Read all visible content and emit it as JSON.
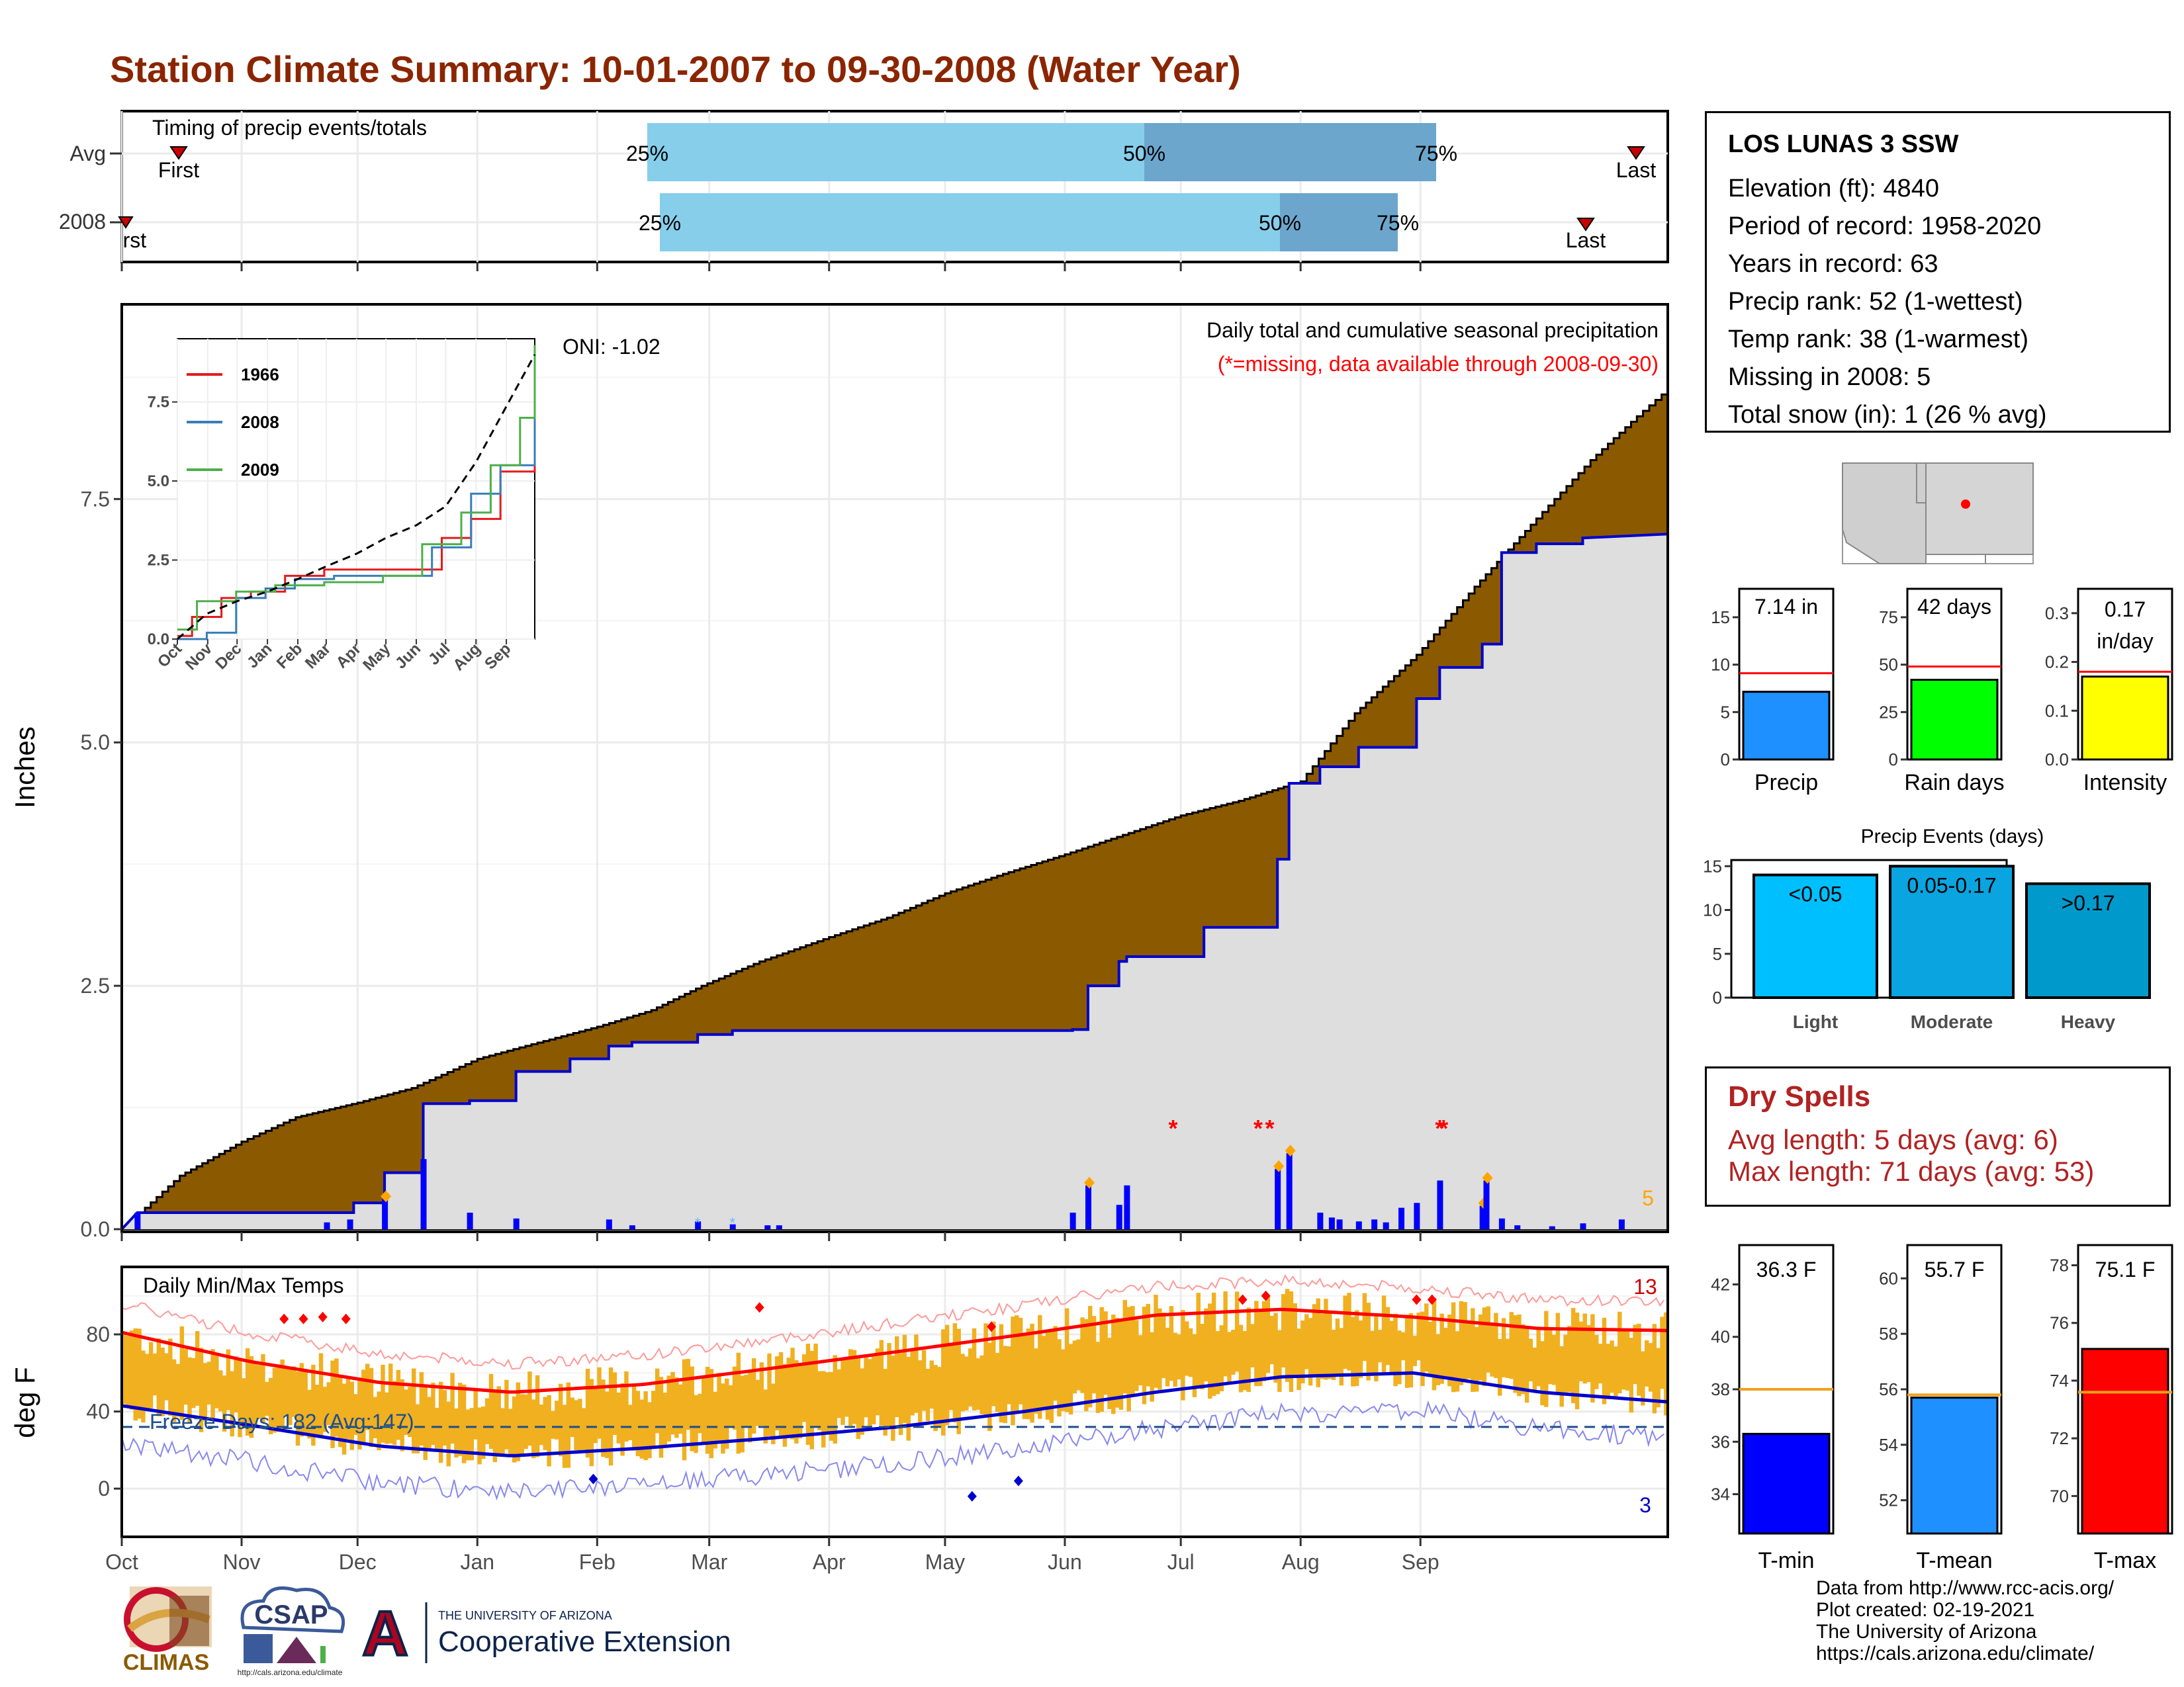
{
  "title": "Station Climate Summary: 10-01-2007 to 09-30-2008 (Water Year)",
  "timing_panel": {
    "label": "Timing of precip events/totals",
    "rows": [
      {
        "name": "Avg",
        "first_label": "First",
        "last_label": "Last",
        "p25_label": "25%",
        "p50_label": "50%",
        "p75_label": "75%"
      },
      {
        "name": "2008",
        "first_label": "First",
        "last_label": "Last",
        "p25_label": "25%",
        "p50_label": "50%",
        "p75_label": "75%"
      }
    ],
    "colors": {
      "light": "#87CEEB",
      "dark": "#6CA6CD",
      "marker": "#CC0000"
    }
  },
  "precip_panel": {
    "ylabel": "Inches",
    "annotation_main": "Daily total and cumulative seasonal precipitation",
    "annotation_missing": "(*=missing, data available through 2008-09-30)",
    "oni": "ONI: -1.02",
    "missing_count": "5",
    "colors": {
      "avg_fill": "#8B5A00",
      "obs_fill": "#DEDEDE",
      "obs_line": "#0000CC",
      "bars": "#0000FF",
      "diamond": "#FFA500",
      "missing": "#FF0000"
    }
  },
  "inset": {
    "legend": [
      "1966",
      "2008",
      "2009"
    ],
    "colors": [
      "#E41A1C",
      "#377EB8",
      "#4DAF4A"
    ],
    "months": [
      "Oct",
      "Nov",
      "Dec",
      "Jan",
      "Feb",
      "Mar",
      "Apr",
      "May",
      "Jun",
      "Jul",
      "Aug",
      "Sep"
    ],
    "yticks": [
      "0.0",
      "2.5",
      "5.0",
      "7.5"
    ]
  },
  "temp_panel": {
    "ylabel": "deg F",
    "label": "Daily Min/Max Temps",
    "freeze_text": "Freeze Days: 182 (Avg:147)",
    "record_high_count": "13",
    "record_low_count": "3",
    "colors": {
      "bars": "#F0B020",
      "max_line": "#FF0000",
      "min_line": "#0000CC"
    }
  },
  "x_months": [
    "Oct",
    "Nov",
    "Dec",
    "Jan",
    "Feb",
    "Mar",
    "Apr",
    "May",
    "Jun",
    "Jul",
    "Aug",
    "Sep"
  ],
  "info": {
    "station": "LOS LUNAS 3 SSW",
    "lines": [
      "Elevation (ft): 4840",
      "Period of record: 1958-2020",
      "Years in record: 63",
      "Precip rank: 52 (1-wettest)",
      "Temp rank: 38 (1-warmest)",
      "Missing in 2008: 5",
      "Total snow (in): 1 (26 % avg)"
    ]
  },
  "mini_bars": [
    {
      "label": "Precip",
      "value_text": "7.14 in",
      "value": 7.14,
      "avg": 9.1,
      "ymax": 18,
      "ticks": [
        "0",
        "5",
        "10",
        "15"
      ],
      "tick_values": [
        0,
        5,
        10,
        15
      ],
      "color": "#1E90FF"
    },
    {
      "label": "Rain days",
      "value_text": "42 days",
      "value": 42,
      "avg": 49,
      "ymax": 90,
      "ticks": [
        "0",
        "25",
        "50",
        "75"
      ],
      "tick_values": [
        0,
        25,
        50,
        75
      ],
      "color": "#00FF00"
    },
    {
      "label": "Intensity",
      "value_text": "0.17 in/day",
      "value_line1": "0.17",
      "value_line2": "in/day",
      "value": 0.17,
      "avg": 0.18,
      "ymax": 0.35,
      "ticks": [
        "0.0",
        "0.1",
        "0.2",
        "0.3"
      ],
      "tick_values": [
        0,
        0.1,
        0.2,
        0.3
      ],
      "color": "#FFFF00"
    }
  ],
  "precip_events": {
    "title": "Precip Events (days)",
    "ticks": [
      "0",
      "5",
      "10",
      "15"
    ],
    "categories": [
      "Light",
      "Moderate",
      "Heavy"
    ],
    "bar_labels": [
      "<0.05",
      "0.05-0.17",
      ">0.17"
    ],
    "values": [
      14,
      15,
      13
    ],
    "colors": [
      "#00BFFF",
      "#0AA5E0",
      "#0099CC"
    ]
  },
  "dry_spells": {
    "title": "Dry Spells",
    "avg_length": "Avg length: 5 days (avg: 6)",
    "max_length": "Max length: 71 days (avg: 53)"
  },
  "temp_bars": [
    {
      "label": "T-min",
      "value_text": "36.3 F",
      "value": 36.3,
      "avg": 38.0,
      "ymin": 32.5,
      "ymax": 43.5,
      "ticks": [
        "34",
        "36",
        "38",
        "40",
        "42"
      ],
      "tick_values": [
        34,
        36,
        38,
        40,
        42
      ],
      "color": "#0000FF"
    },
    {
      "label": "T-mean",
      "value_text": "55.7 F",
      "value": 55.7,
      "avg": 55.8,
      "ymin": 50.8,
      "ymax": 61.2,
      "ticks": [
        "52",
        "54",
        "56",
        "58",
        "60"
      ],
      "tick_values": [
        52,
        54,
        56,
        58,
        60
      ],
      "color": "#1E90FF"
    },
    {
      "label": "T-max",
      "value_text": "75.1 F",
      "value": 75.1,
      "avg": 73.6,
      "ymin": 68.7,
      "ymax": 78.7,
      "ticks": [
        "70",
        "72",
        "74",
        "76",
        "78"
      ],
      "tick_values": [
        70,
        72,
        74,
        76,
        78
      ],
      "color": "#FF0000"
    }
  ],
  "footer": {
    "lines": [
      "Data from http://www.rcc-acis.org/",
      "Plot created: 02-19-2021",
      "The University of Arizona",
      "https://cals.arizona.edu/climate/"
    ]
  },
  "logos": {
    "climas": "CLIMAS",
    "csap": "CSAP",
    "csap_url": "http://cals.arizona.edu/climate",
    "ua_small": "THE UNIVERSITY OF ARIZONA",
    "ua_big": "Cooperative Extension"
  },
  "chart_data": [
    {
      "type": "area",
      "title": "Daily total and cumulative seasonal precipitation",
      "ylabel": "Inches",
      "ylim": [
        0,
        9.5
      ],
      "x": [
        "Oct",
        "Nov",
        "Dec",
        "Jan",
        "Feb",
        "Mar",
        "Apr",
        "May",
        "Jun",
        "Jul",
        "Aug",
        "Sep"
      ],
      "series": [
        {
          "name": "Avg",
          "points": [
            [
              0,
              0
            ],
            [
              15,
              0.55
            ],
            [
              31,
              0.9
            ],
            [
              45,
              1.15
            ],
            [
              61,
              1.3
            ],
            [
              75,
              1.45
            ],
            [
              92,
              1.75
            ],
            [
              106,
              1.9
            ],
            [
              123,
              2.08
            ],
            [
              137,
              2.25
            ],
            [
              150,
              2.5
            ],
            [
              165,
              2.75
            ],
            [
              183,
              3.0
            ],
            [
              198,
              3.2
            ],
            [
              213,
              3.45
            ],
            [
              228,
              3.65
            ],
            [
              244,
              3.85
            ],
            [
              259,
              4.05
            ],
            [
              274,
              4.25
            ],
            [
              289,
              4.4
            ],
            [
              305,
              4.6
            ],
            [
              319,
              5.3
            ],
            [
              335,
              5.9
            ],
            [
              350,
              6.6
            ],
            [
              366,
              7.3
            ],
            [
              380,
              7.9
            ],
            [
              392,
              8.35
            ],
            [
              400,
              8.63
            ]
          ]
        },
        {
          "name": "2008",
          "points": [
            [
              0,
              0
            ],
            [
              4,
              0.17
            ],
            [
              60,
              0.17
            ],
            [
              60,
              0.27
            ],
            [
              68,
              0.27
            ],
            [
              68,
              0.58
            ],
            [
              78,
              0.58
            ],
            [
              78,
              1.29
            ],
            [
              90,
              1.29
            ],
            [
              90,
              1.32
            ],
            [
              102,
              1.32
            ],
            [
              102,
              1.62
            ],
            [
              116,
              1.62
            ],
            [
              116,
              1.75
            ],
            [
              126,
              1.75
            ],
            [
              126,
              1.88
            ],
            [
              132,
              1.88
            ],
            [
              132,
              1.92
            ],
            [
              149,
              1.92
            ],
            [
              149,
              2.0
            ],
            [
              158,
              2.0
            ],
            [
              158,
              2.04
            ],
            [
              246,
              2.04
            ],
            [
              246,
              2.05
            ],
            [
              250,
              2.05
            ],
            [
              250,
              2.5
            ],
            [
              258,
              2.5
            ],
            [
              258,
              2.75
            ],
            [
              260,
              2.75
            ],
            [
              260,
              2.8
            ],
            [
              280,
              2.8
            ],
            [
              280,
              3.1
            ],
            [
              299,
              3.1
            ],
            [
              299,
              3.8
            ],
            [
              302,
              3.8
            ],
            [
              302,
              4.58
            ],
            [
              310,
              4.58
            ],
            [
              310,
              4.75
            ],
            [
              320,
              4.75
            ],
            [
              320,
              4.95
            ],
            [
              335,
              4.95
            ],
            [
              335,
              5.45
            ],
            [
              341,
              5.45
            ],
            [
              341,
              5.77
            ],
            [
              352,
              5.77
            ],
            [
              352,
              6.01
            ],
            [
              357,
              6.01
            ],
            [
              357,
              6.95
            ],
            [
              366,
              6.95
            ],
            [
              366,
              7.04
            ],
            [
              378,
              7.04
            ],
            [
              378,
              7.1
            ],
            [
              400,
              7.14
            ]
          ]
        }
      ],
      "daily_bars": [
        [
          4,
          0.17
        ],
        [
          53,
          0.07
        ],
        [
          59,
          0.1
        ],
        [
          68,
          0.31
        ],
        [
          78,
          0.72
        ],
        [
          90,
          0.17
        ],
        [
          102,
          0.11
        ],
        [
          126,
          0.1
        ],
        [
          132,
          0.04
        ],
        [
          149,
          0.08
        ],
        [
          158,
          0.05
        ],
        [
          167,
          0.04
        ],
        [
          170,
          0.04
        ],
        [
          246,
          0.17
        ],
        [
          250,
          0.45
        ],
        [
          258,
          0.25
        ],
        [
          260,
          0.45
        ],
        [
          299,
          0.62
        ],
        [
          302,
          0.78
        ],
        [
          310,
          0.17
        ],
        [
          313,
          0.12
        ],
        [
          315,
          0.1
        ],
        [
          320,
          0.08
        ],
        [
          324,
          0.1
        ],
        [
          327,
          0.07
        ],
        [
          331,
          0.22
        ],
        [
          335,
          0.27
        ],
        [
          341,
          0.5
        ],
        [
          352,
          0.24
        ],
        [
          353,
          0.5
        ],
        [
          357,
          0.11
        ],
        [
          361,
          0.04
        ],
        [
          370,
          0.03
        ],
        [
          378,
          0.06
        ],
        [
          388,
          0.1
        ]
      ],
      "missing_days": [
        272,
        294,
        297,
        341,
        342
      ]
    },
    {
      "type": "line",
      "title": "Daily Min/Max Temps",
      "ylabel": "deg F",
      "ylim": [
        -25,
        115
      ],
      "x": [
        "Oct",
        "Nov",
        "Dec",
        "Jan",
        "Feb",
        "Mar",
        "Apr",
        "May",
        "Jun",
        "Jul",
        "Aug",
        "Sep"
      ],
      "series": [
        {
          "name": "Avg max",
          "points": [
            [
              0,
              81
            ],
            [
              30,
              66
            ],
            [
              61,
              55
            ],
            [
              92,
              50
            ],
            [
              123,
              54
            ],
            [
              152,
              62
            ],
            [
              183,
              71
            ],
            [
              213,
              80
            ],
            [
              244,
              90
            ],
            [
              274,
              93
            ],
            [
              305,
              89
            ],
            [
              335,
              83
            ],
            [
              365,
              82
            ]
          ]
        },
        {
          "name": "Avg min",
          "points": [
            [
              0,
              43
            ],
            [
              30,
              33
            ],
            [
              61,
              22
            ],
            [
              92,
              17
            ],
            [
              123,
              21
            ],
            [
              152,
              26
            ],
            [
              183,
              32
            ],
            [
              213,
              40
            ],
            [
              244,
              50
            ],
            [
              274,
              58
            ],
            [
              305,
              60
            ],
            [
              335,
              50
            ],
            [
              365,
              45
            ]
          ]
        }
      ],
      "freeze_line": 32
    },
    {
      "type": "line",
      "title": "",
      "ylim": [
        0,
        9.5
      ],
      "x": [
        "Oct",
        "Nov",
        "Dec",
        "Jan",
        "Feb",
        "Mar",
        "Apr",
        "May",
        "Jun",
        "Jul",
        "Aug",
        "Sep"
      ],
      "series": [
        {
          "name": "1966",
          "points": [
            [
              0,
              0.1
            ],
            [
              15,
              0.7
            ],
            [
              45,
              1.3
            ],
            [
              75,
              1.5
            ],
            [
              110,
              2.0
            ],
            [
              150,
              2.2
            ],
            [
              190,
              2.2
            ],
            [
              225,
              2.2
            ],
            [
              270,
              3.2
            ],
            [
              300,
              3.8
            ],
            [
              330,
              5.3
            ],
            [
              365,
              7.6
            ]
          ]
        },
        {
          "name": "2008",
          "points": [
            [
              0,
              0
            ],
            [
              30,
              0.2
            ],
            [
              60,
              1.3
            ],
            [
              90,
              1.6
            ],
            [
              120,
              1.9
            ],
            [
              160,
              2.0
            ],
            [
              210,
              2.0
            ],
            [
              260,
              2.9
            ],
            [
              300,
              4.6
            ],
            [
              330,
              5.5
            ],
            [
              365,
              7.2
            ]
          ]
        },
        {
          "name": "2009",
          "points": [
            [
              0,
              0.3
            ],
            [
              20,
              1.2
            ],
            [
              60,
              1.5
            ],
            [
              100,
              1.7
            ],
            [
              150,
              1.8
            ],
            [
              210,
              2.0
            ],
            [
              250,
              3.0
            ],
            [
              290,
              4.0
            ],
            [
              320,
              5.5
            ],
            [
              350,
              7.0
            ],
            [
              365,
              9.3
            ]
          ]
        },
        {
          "name": "Avg",
          "points": [
            [
              0,
              0
            ],
            [
              30,
              0.8
            ],
            [
              61,
              1.2
            ],
            [
              92,
              1.5
            ],
            [
              123,
              1.9
            ],
            [
              152,
              2.3
            ],
            [
              183,
              2.7
            ],
            [
              213,
              3.2
            ],
            [
              244,
              3.6
            ],
            [
              274,
              4.2
            ],
            [
              305,
              5.6
            ],
            [
              335,
              7.3
            ],
            [
              365,
              9.0
            ]
          ]
        }
      ]
    }
  ]
}
